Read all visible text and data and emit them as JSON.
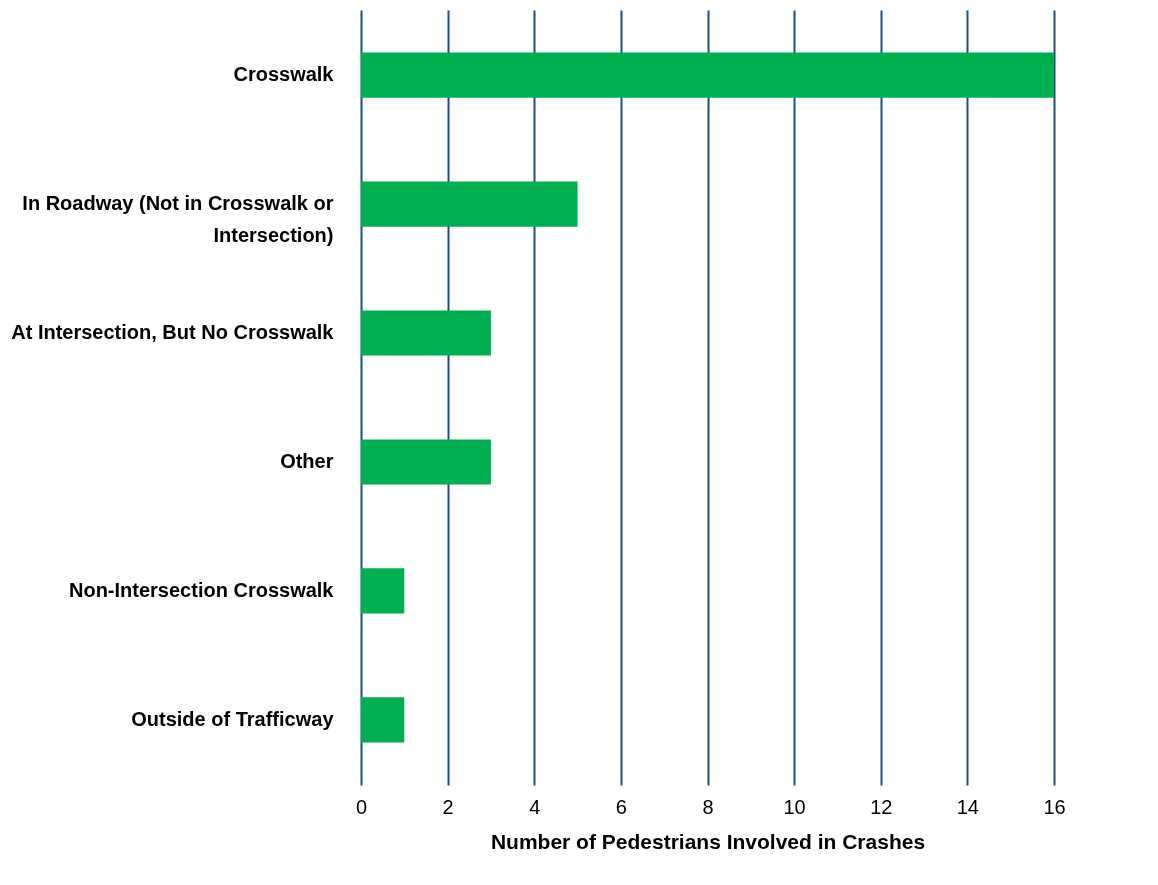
{
  "chart_data": {
    "type": "bar",
    "orientation": "horizontal",
    "xlabel": "Number of Pedestrians Involved in Crashes",
    "categories": [
      "Crosswalk",
      "In Roadway (Not in Crosswalk or Intersection)",
      "At Intersection, But No Crosswalk",
      "Other",
      "Non-Intersection Crosswalk",
      "Outside of Trafficway"
    ],
    "values": [
      16,
      5,
      3,
      3,
      1,
      1
    ],
    "color": "#00b050",
    "xlim": [
      0,
      16
    ],
    "xticks": [
      0,
      2,
      4,
      6,
      8,
      10,
      12,
      14,
      16
    ],
    "grid": "x"
  }
}
